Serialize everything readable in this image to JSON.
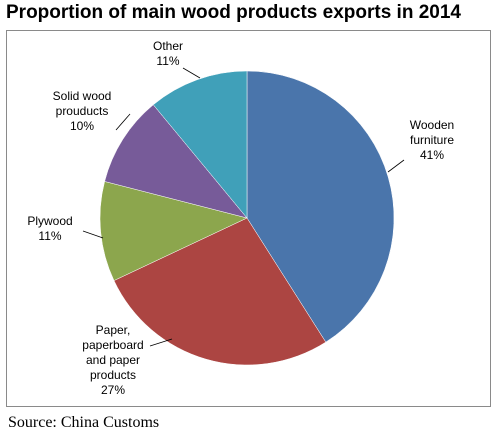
{
  "chart_data": {
    "type": "pie",
    "title": "Proportion of main wood products exports in 2014",
    "categories": [
      "Wooden furniture",
      "Paper, paperboard and paper products",
      "Plywood",
      "Solid wood prouducts",
      "Other"
    ],
    "values": [
      41,
      27,
      11,
      10,
      11
    ],
    "value_labels": [
      "41%",
      "27%",
      "11%",
      "10%",
      "11%"
    ],
    "colors": [
      "#4a75ab",
      "#ac4542",
      "#8ca64d",
      "#775b99",
      "#40a0b9"
    ],
    "source": "Source: China Customs"
  }
}
